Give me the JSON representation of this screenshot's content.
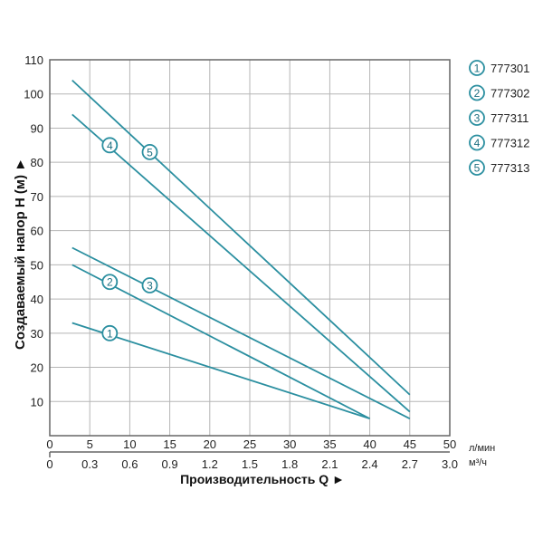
{
  "chart_data": {
    "type": "line",
    "xlabel": "Производительность Q ►",
    "ylabel": "Создаваемый напор H (м) ►",
    "x_unit": "л/мин",
    "x2_unit": "м³/ч",
    "xlim": [
      0,
      50
    ],
    "ylim": [
      0,
      110
    ],
    "x_ticks": [
      "0",
      "5",
      "10",
      "15",
      "20",
      "25",
      "30",
      "35",
      "40",
      "45",
      "50"
    ],
    "x2_ticks": [
      "0",
      "0.3",
      "0.6",
      "0.9",
      "1.2",
      "1.5",
      "1.8",
      "2.1",
      "2.4",
      "2.7",
      "3.0"
    ],
    "y_ticks": [
      "10",
      "20",
      "30",
      "40",
      "50",
      "60",
      "70",
      "80",
      "90",
      "100",
      "110"
    ],
    "grid": true,
    "legend_placement": "right",
    "line_color": "#2b8fa0",
    "series": [
      {
        "name": "777301",
        "marker": "1",
        "x": [
          2.8,
          40
        ],
        "y": [
          33,
          5
        ],
        "label_at": [
          7.5,
          30
        ]
      },
      {
        "name": "777302",
        "marker": "2",
        "x": [
          2.8,
          40
        ],
        "y": [
          50,
          5
        ],
        "label_at": [
          7.5,
          45
        ]
      },
      {
        "name": "777311",
        "marker": "3",
        "x": [
          2.8,
          45
        ],
        "y": [
          55,
          5
        ],
        "label_at": [
          12.5,
          44
        ]
      },
      {
        "name": "777312",
        "marker": "4",
        "x": [
          2.8,
          45
        ],
        "y": [
          94,
          7
        ],
        "label_at": [
          7.5,
          85
        ]
      },
      {
        "name": "777313",
        "marker": "5",
        "x": [
          2.8,
          45
        ],
        "y": [
          104,
          12
        ],
        "label_at": [
          12.5,
          83
        ]
      }
    ]
  }
}
